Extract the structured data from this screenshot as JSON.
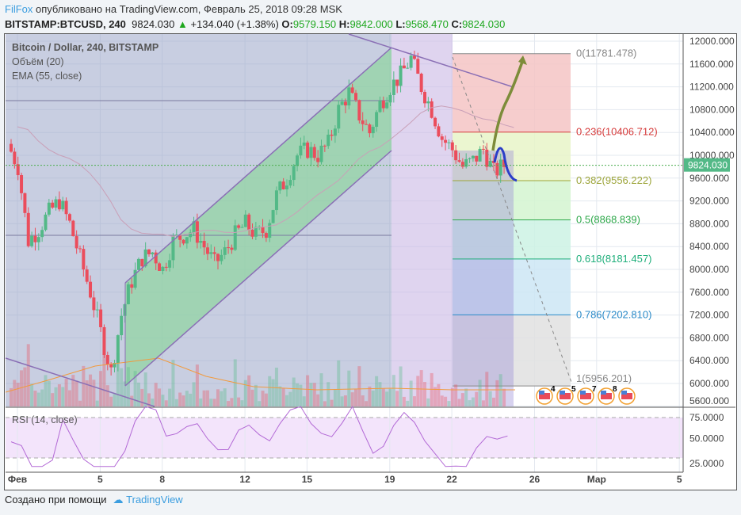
{
  "header": {
    "user": "FilFox",
    "published": "опубликовано на TradingView.com, Февраль 25, 2018 09:28 MSK",
    "symbol": "BITSTAMP:BTCUSD, 240",
    "last": "9824.030",
    "change": "+134.040 (+1.38%)",
    "o_label": "O:",
    "o": "9579.150",
    "h_label": "H:",
    "h": "9842.000",
    "l_label": "L:",
    "l": "9568.470",
    "c_label": "C:",
    "c": "9824.030"
  },
  "legend": {
    "title": "Bitcoin / Dollar, 240, BITSTAMP",
    "volume": "Объём (20)",
    "ema": "EMA (55, close)",
    "rsi": "RSI (14, close)"
  },
  "footer": {
    "created": "Создано при помощи",
    "brand": "TradingView"
  },
  "colors": {
    "up": "#53b987",
    "down": "#eb4d5c",
    "ema": "#c9a0b8",
    "rsi": "#b36ad6",
    "accent": "#3a9ddf"
  },
  "chart_data": {
    "type": "candlestick",
    "ylim": [
      5600,
      12000
    ],
    "y_ticks": [
      "12000.000",
      "11600.000",
      "11200.000",
      "10800.000",
      "10400.000",
      "10000.000",
      "9600.000",
      "9200.000",
      "8800.000",
      "8400.000",
      "8000.000",
      "7600.000",
      "7200.000",
      "6800.000",
      "6400.000",
      "6000.000",
      "5600.000"
    ],
    "x_ticks": [
      {
        "label": "Фев",
        "day": 1
      },
      {
        "label": "5",
        "day": 5
      },
      {
        "label": "8",
        "day": 8
      },
      {
        "label": "12",
        "day": 12
      },
      {
        "label": "15",
        "day": 15
      },
      {
        "label": "19",
        "day": 19
      },
      {
        "label": "22",
        "day": 22
      },
      {
        "label": "26",
        "day": 26
      },
      {
        "label": "Мар",
        "day": 29
      },
      {
        "label": "5",
        "day": 33
      }
    ],
    "close_by_halfday": [
      [
        1,
        10200
      ],
      [
        1.5,
        9800
      ],
      [
        2,
        8500
      ],
      [
        2.5,
        8700
      ],
      [
        3,
        9000
      ],
      [
        3.5,
        9200
      ],
      [
        4,
        8800
      ],
      [
        4.5,
        8200
      ],
      [
        5,
        7600
      ],
      [
        5.5,
        6900
      ],
      [
        6,
        6200
      ],
      [
        6.5,
        7200
      ],
      [
        7,
        7800
      ],
      [
        7.5,
        8200
      ],
      [
        8,
        8300
      ],
      [
        8.5,
        8000
      ],
      [
        9,
        8500
      ],
      [
        9.5,
        8600
      ],
      [
        10,
        8700
      ],
      [
        10.5,
        8400
      ],
      [
        11,
        8100
      ],
      [
        11.5,
        8300
      ],
      [
        12,
        8600
      ],
      [
        12.5,
        8800
      ],
      [
        13,
        8600
      ],
      [
        13.5,
        8700
      ],
      [
        14,
        9300
      ],
      [
        14.5,
        9600
      ],
      [
        15,
        10000
      ],
      [
        15.5,
        10100
      ],
      [
        16,
        10000
      ],
      [
        16.5,
        10200
      ],
      [
        17,
        10800
      ],
      [
        17.5,
        11100
      ],
      [
        18,
        10700
      ],
      [
        18.5,
        10400
      ],
      [
        19,
        10900
      ],
      [
        19.5,
        11200
      ],
      [
        20,
        11400
      ],
      [
        20.5,
        11700
      ],
      [
        21,
        11200
      ],
      [
        21.5,
        10800
      ],
      [
        22,
        10300
      ],
      [
        22.5,
        10100
      ],
      [
        23,
        9800
      ],
      [
        23.5,
        9900
      ],
      [
        24,
        10100
      ],
      [
        24.5,
        9700
      ],
      [
        25,
        9824
      ]
    ],
    "last_price": "9824.030",
    "fib_levels": [
      {
        "label": "0(11781.478)",
        "price": 11781.478,
        "color": "#888888"
      },
      {
        "label": "0.236(10406.712)",
        "price": 10406.712,
        "color": "#d63b3b"
      },
      {
        "label": "0.382(9556.222)",
        "price": 9556.222,
        "color": "#9da53a"
      },
      {
        "label": "0.5(8868.839)",
        "price": 8868.839,
        "color": "#2ea84a"
      },
      {
        "label": "0.618(8181.457)",
        "price": 8181.457,
        "color": "#1eae7a"
      },
      {
        "label": "0.786(7202.810)",
        "price": 7202.81,
        "color": "#2a8ac8"
      },
      {
        "label": "1(5956.201)",
        "price": 5956.201,
        "color": "#888888"
      }
    ],
    "rsi_ticks": [
      "75.0000",
      "50.0000",
      "25.0000"
    ],
    "events": [
      "4",
      "5",
      "7",
      "8",
      ""
    ]
  }
}
